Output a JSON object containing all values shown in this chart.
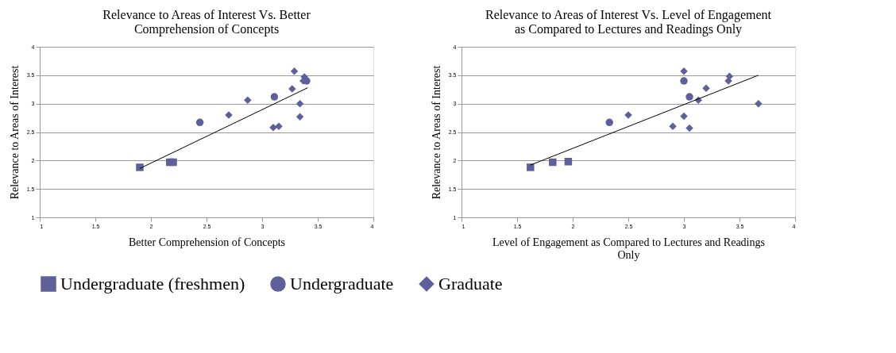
{
  "chart_data": [
    {
      "type": "scatter",
      "title": "Relevance to Areas of Interest Vs. Better\nComprehension of Concepts",
      "xlabel": "Better Comprehension of Concepts",
      "ylabel": "Relevance to Areas of Interest",
      "xlim": [
        1,
        4
      ],
      "ylim": [
        1,
        4
      ],
      "xticks": [
        1,
        1.5,
        2,
        2.5,
        3,
        3.5,
        4
      ],
      "yticks": [
        1,
        1.5,
        2,
        2.5,
        3,
        3.5,
        4
      ],
      "grid": "y",
      "legend": "bottom",
      "series": [
        {
          "name": "Undergraduate (freshmen)",
          "color": "#5f5f9b",
          "marker": "square",
          "x": [
            1.9,
            2.17,
            2.2
          ],
          "values": [
            1.88,
            1.97,
            1.97
          ]
        },
        {
          "name": "Undergraduate",
          "color": "#5f5f9b",
          "marker": "circle",
          "x": [
            2.44,
            3.11,
            3.4
          ],
          "values": [
            2.67,
            3.12,
            3.4
          ]
        },
        {
          "name": "Graduate",
          "color": "#5f5f9b",
          "marker": "diamond",
          "x": [
            3.29,
            3.38,
            3.37,
            3.27,
            2.87,
            2.7,
            3.34,
            3.34,
            3.1,
            3.15
          ],
          "values": [
            3.57,
            3.47,
            3.4,
            3.26,
            3.06,
            2.8,
            3.0,
            2.77,
            2.58,
            2.6
          ]
        },
        {
          "type": "line",
          "color": "#000000",
          "line_style": "solid",
          "x": [
            1.9,
            3.41
          ],
          "values": [
            1.86,
            3.28
          ]
        }
      ]
    },
    {
      "type": "scatter",
      "title": "Relevance to Areas of Interest Vs. Level of Engagement\nas Compared to Lectures and Readings Only",
      "xlabel": "Level of Engagement as Compared to Lectures and Readings\nOnly",
      "ylabel": "Relevance to Areas of Interest",
      "xlim": [
        1,
        4
      ],
      "ylim": [
        1,
        4
      ],
      "xticks": [
        1,
        1.5,
        2,
        2.5,
        3,
        3.5,
        4
      ],
      "yticks": [
        1,
        1.5,
        2,
        2.5,
        3,
        3.5,
        4
      ],
      "grid": "y",
      "legend": "bottom",
      "series": [
        {
          "name": "Undergraduate (freshmen)",
          "color": "#5f5f9b",
          "marker": "square",
          "x": [
            1.62,
            1.82,
            1.96
          ],
          "values": [
            1.88,
            1.97,
            1.98
          ]
        },
        {
          "name": "Undergraduate",
          "color": "#5f5f9b",
          "marker": "circle",
          "x": [
            2.33,
            3.0,
            3.05
          ],
          "values": [
            2.67,
            3.4,
            3.12
          ]
        },
        {
          "name": "Graduate",
          "color": "#5f5f9b",
          "marker": "diamond",
          "x": [
            3.0,
            3.41,
            3.4,
            3.2,
            3.13,
            2.5,
            3.67,
            3.0,
            2.9,
            3.05
          ],
          "values": [
            3.57,
            3.48,
            3.4,
            3.27,
            3.06,
            2.8,
            3.0,
            2.78,
            2.6,
            2.57
          ]
        },
        {
          "type": "line",
          "color": "#000000",
          "line_style": "solid",
          "x": [
            1.62,
            3.67
          ],
          "values": [
            1.92,
            3.5
          ]
        }
      ]
    }
  ]
}
